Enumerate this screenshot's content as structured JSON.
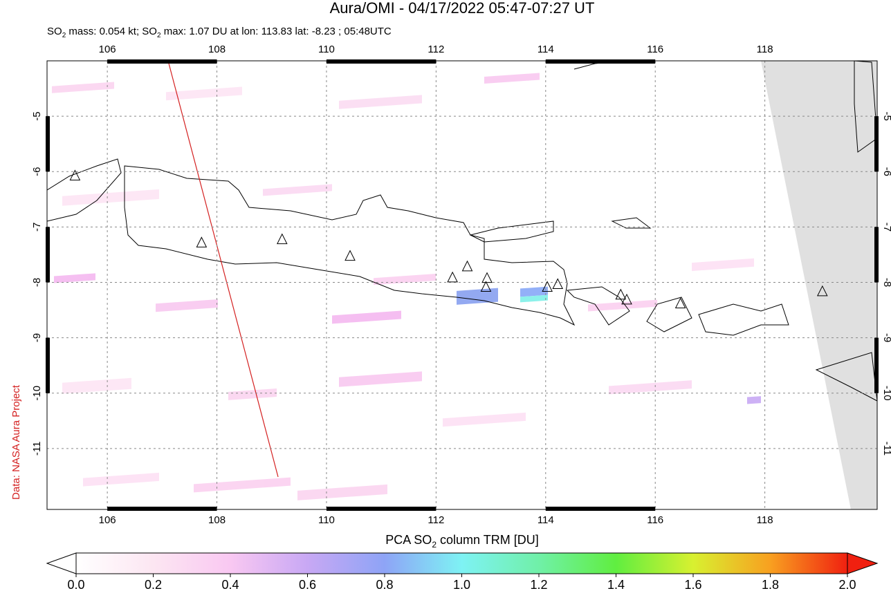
{
  "chart_data": {
    "type": "map",
    "title": "Aura/OMI - 04/17/2022 05:47-07:27 UT",
    "subtitle": [
      "SO",
      "2",
      " mass: 0.054 kt; SO",
      "2",
      " max: 1.07 DU at lon: 113.83 lat: -8.23 ; 05:48UTC"
    ],
    "credit": "Data: NASA Aura Project",
    "xlim": [
      104.9,
      120.05
    ],
    "xticks": [
      106,
      108,
      110,
      112,
      114,
      116,
      118
    ],
    "ylim": [
      -12.1,
      -4
    ],
    "yticks": [
      -5,
      -6,
      -7,
      -8,
      -9,
      -10,
      -11
    ],
    "grid": true,
    "volcanoes": {
      "x": [
        105.41,
        107.72,
        109.19,
        110.43,
        112.3,
        112.57,
        112.93,
        112.91,
        114.03,
        114.22,
        115.37,
        115.48,
        116.46,
        119.05
      ],
      "y": [
        -6.09,
        -7.3,
        -7.24,
        -7.54,
        -7.93,
        -7.73,
        -7.94,
        -8.1,
        -8.1,
        -8.05,
        -8.24,
        -8.33,
        -8.4,
        -8.18
      ]
    },
    "colorbar": {
      "label": [
        "PCA SO",
        "2",
        " column TRM [DU]"
      ],
      "lim": [
        0,
        2
      ],
      "ticks": [
        {
          "value": 0,
          "label": "0.0"
        },
        0.2,
        0.4,
        0.6,
        0.8,
        {
          "value": 1,
          "label": "1.0"
        },
        1.2,
        1.4,
        1.6,
        1.8,
        {
          "value": 2,
          "label": "2.0"
        }
      ]
    }
  }
}
